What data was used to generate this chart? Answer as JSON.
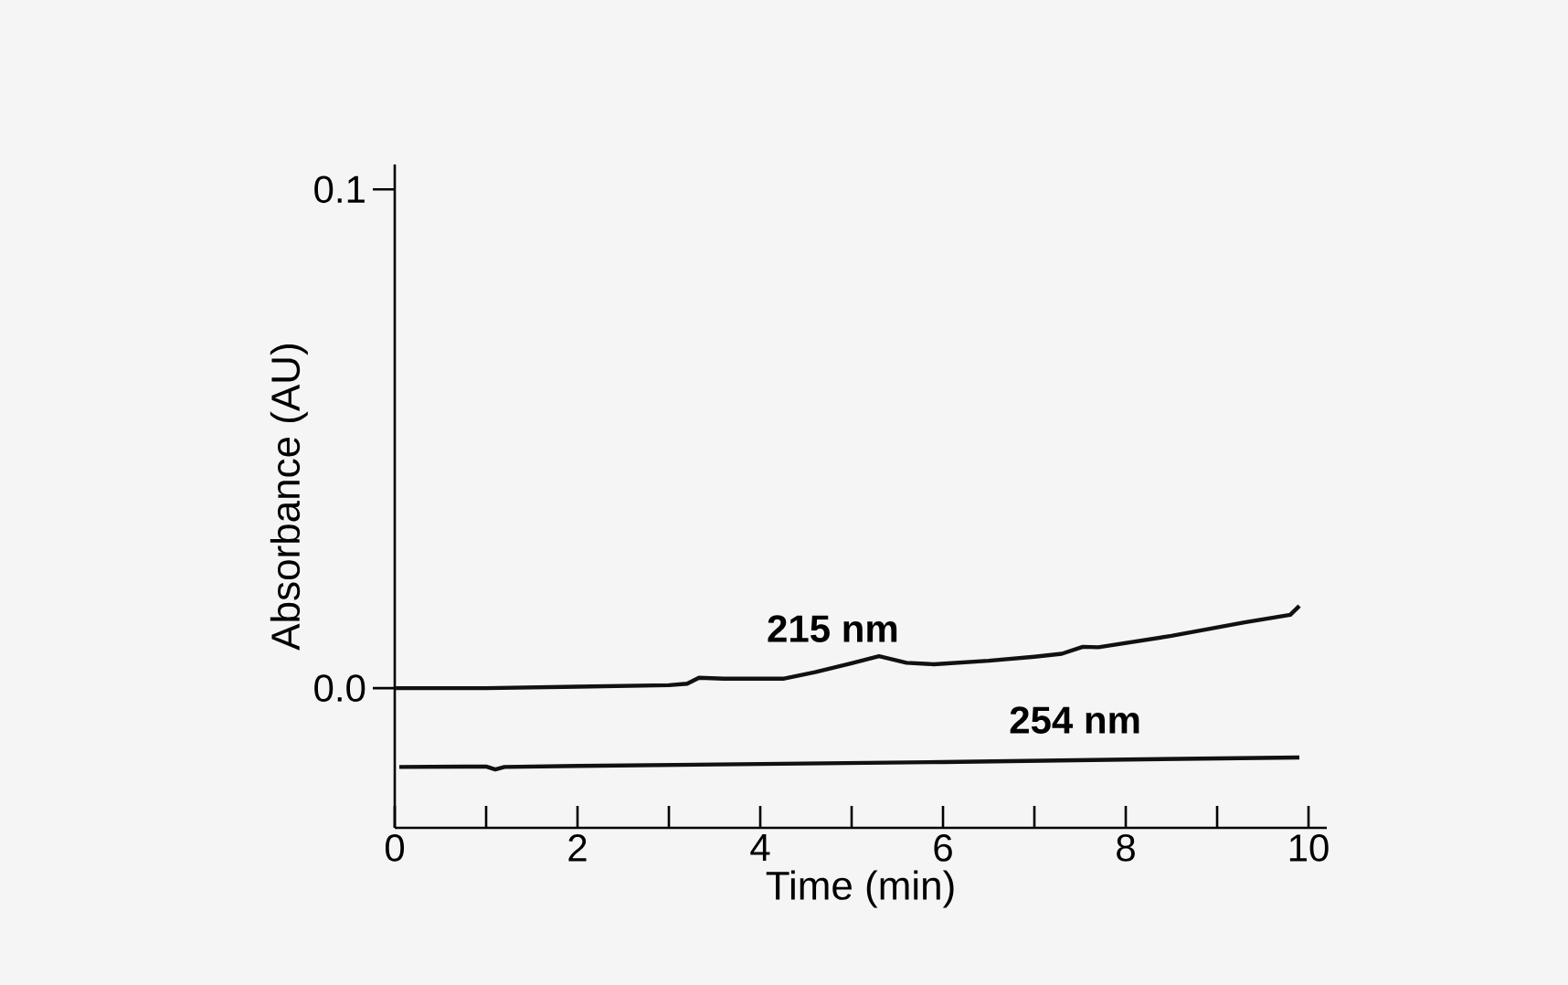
{
  "chart_data": {
    "type": "line",
    "xlabel": "Time (min)",
    "ylabel": "Absorbance (AU)",
    "xlim": [
      0,
      10.2
    ],
    "ylim": [
      -0.028,
      0.105
    ],
    "xticks": [
      0,
      {
        "value": 1,
        "label": null
      },
      2,
      {
        "value": 3,
        "label": null
      },
      4,
      {
        "value": 5,
        "label": null
      },
      6,
      {
        "value": 7,
        "label": null
      },
      8,
      {
        "value": 9,
        "label": null
      },
      10
    ],
    "yticks": [
      {
        "value": 0,
        "label": "0.0"
      },
      0.1
    ],
    "legend": false,
    "grid": false,
    "marker": "none",
    "line_style": "solid",
    "series": [
      {
        "name": "215 nm",
        "color": "#111111",
        "x": [
          0,
          1,
          2,
          3,
          3.2,
          3.33,
          3.6,
          4.25,
          4.6,
          5.0,
          5.3,
          5.6,
          5.9,
          6.5,
          7.0,
          7.3,
          7.53,
          7.7,
          8.5,
          9.3,
          9.8,
          9.9
        ],
        "values": [
          0,
          0,
          0.0003,
          0.0006,
          0.0009,
          0.0021,
          0.0019,
          0.0019,
          0.0032,
          0.005,
          0.0064,
          0.0051,
          0.0048,
          0.0055,
          0.0063,
          0.0069,
          0.0083,
          0.0082,
          0.0105,
          0.0132,
          0.0147,
          0.0165
        ]
      },
      {
        "name": "254 nm",
        "color": "#111111",
        "x": [
          0.05,
          1.0,
          1.1,
          1.2,
          2,
          4,
          6,
          8,
          9.9
        ],
        "values": [
          -0.0158,
          -0.0157,
          -0.0163,
          -0.0158,
          -0.0156,
          -0.0152,
          -0.0148,
          -0.0143,
          -0.0139
        ]
      }
    ]
  }
}
